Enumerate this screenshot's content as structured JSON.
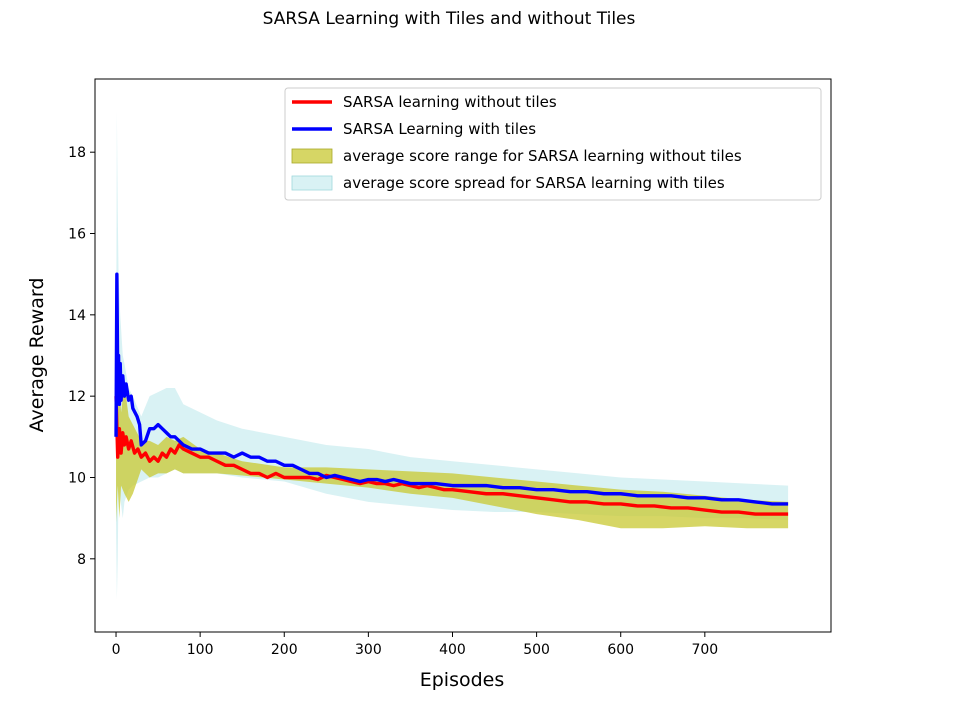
{
  "chart_data": {
    "type": "line",
    "title": "SARSA Learning with Tiles and without Tiles",
    "xlabel": "Episodes",
    "ylabel": "Average Reward",
    "xlim": [
      -25,
      850
    ],
    "ylim": [
      6.2,
      19.8
    ],
    "xticks": [
      0,
      100,
      200,
      300,
      400,
      500,
      600,
      700
    ],
    "yticks": [
      8,
      10,
      12,
      14,
      16,
      18
    ],
    "grid": false,
    "legend_position": "top-right",
    "colors": {
      "without_tiles_line": "#ff0000",
      "with_tiles_line": "#0000ff",
      "without_tiles_band": "#c8c832",
      "with_tiles_band": "#b4e6ea"
    },
    "series": [
      {
        "name": "SARSA learning without tiles",
        "kind": "line",
        "x": [
          0,
          2,
          4,
          6,
          8,
          10,
          12,
          15,
          18,
          22,
          26,
          30,
          35,
          40,
          45,
          50,
          55,
          60,
          65,
          70,
          75,
          80,
          90,
          100,
          110,
          120,
          130,
          140,
          150,
          160,
          170,
          180,
          190,
          200,
          210,
          220,
          230,
          240,
          250,
          260,
          270,
          280,
          290,
          300,
          310,
          320,
          330,
          340,
          350,
          360,
          370,
          380,
          390,
          400,
          420,
          440,
          460,
          480,
          500,
          520,
          540,
          560,
          580,
          600,
          620,
          640,
          660,
          680,
          700,
          720,
          740,
          760,
          780,
          799
        ],
        "y": [
          12.0,
          10.5,
          11.2,
          10.6,
          11.1,
          10.8,
          11.0,
          10.7,
          10.9,
          10.6,
          10.7,
          10.5,
          10.6,
          10.4,
          10.5,
          10.4,
          10.6,
          10.5,
          10.7,
          10.6,
          10.8,
          10.7,
          10.6,
          10.5,
          10.5,
          10.4,
          10.3,
          10.3,
          10.2,
          10.1,
          10.1,
          10.0,
          10.1,
          10.0,
          10.0,
          10.0,
          10.0,
          9.95,
          10.05,
          10.0,
          9.95,
          9.9,
          9.85,
          9.9,
          9.85,
          9.85,
          9.8,
          9.85,
          9.8,
          9.75,
          9.8,
          9.75,
          9.7,
          9.7,
          9.65,
          9.6,
          9.6,
          9.55,
          9.5,
          9.45,
          9.4,
          9.4,
          9.35,
          9.35,
          9.3,
          9.3,
          9.25,
          9.25,
          9.2,
          9.15,
          9.15,
          9.1,
          9.1,
          9.1
        ]
      },
      {
        "name": "SARSA Learning with tiles",
        "kind": "line",
        "x": [
          0,
          1,
          2,
          3,
          4,
          5,
          6,
          8,
          10,
          12,
          15,
          18,
          20,
          25,
          28,
          30,
          35,
          40,
          45,
          50,
          55,
          60,
          65,
          70,
          80,
          90,
          100,
          110,
          120,
          130,
          140,
          150,
          160,
          170,
          180,
          190,
          200,
          210,
          220,
          230,
          240,
          250,
          260,
          270,
          280,
          290,
          300,
          310,
          320,
          330,
          340,
          350,
          360,
          380,
          400,
          420,
          440,
          460,
          480,
          500,
          520,
          540,
          560,
          580,
          600,
          620,
          640,
          660,
          680,
          700,
          720,
          740,
          760,
          780,
          799
        ],
        "y": [
          11.0,
          15.0,
          12.5,
          13.0,
          11.8,
          12.8,
          11.9,
          12.5,
          12.0,
          12.3,
          11.9,
          12.0,
          11.7,
          11.5,
          11.3,
          10.8,
          10.9,
          11.2,
          11.2,
          11.3,
          11.2,
          11.1,
          11.0,
          11.0,
          10.8,
          10.7,
          10.7,
          10.6,
          10.6,
          10.6,
          10.5,
          10.6,
          10.5,
          10.5,
          10.4,
          10.4,
          10.3,
          10.3,
          10.2,
          10.1,
          10.1,
          10.0,
          10.05,
          10.0,
          9.95,
          9.9,
          9.95,
          9.95,
          9.9,
          9.95,
          9.9,
          9.85,
          9.85,
          9.85,
          9.8,
          9.8,
          9.8,
          9.75,
          9.75,
          9.7,
          9.7,
          9.65,
          9.65,
          9.6,
          9.6,
          9.55,
          9.55,
          9.55,
          9.5,
          9.5,
          9.45,
          9.45,
          9.4,
          9.35,
          9.35
        ]
      },
      {
        "name": "average score range for SARSA learning without tiles",
        "kind": "band",
        "x": [
          0,
          2,
          4,
          6,
          10,
          15,
          20,
          30,
          40,
          50,
          60,
          70,
          80,
          100,
          120,
          150,
          200,
          250,
          300,
          350,
          400,
          450,
          500,
          550,
          600,
          650,
          700,
          750,
          799
        ],
        "upper": [
          12.0,
          12.9,
          12.3,
          11.6,
          12.3,
          11.5,
          11.3,
          10.9,
          10.9,
          10.8,
          11.0,
          10.9,
          11.0,
          10.7,
          10.6,
          10.4,
          10.25,
          10.25,
          10.2,
          10.15,
          10.1,
          10.0,
          9.9,
          9.8,
          9.7,
          9.65,
          9.55,
          9.45,
          9.4
        ],
        "lower": [
          8.9,
          9.8,
          9.0,
          9.8,
          9.6,
          9.4,
          9.6,
          10.2,
          10.0,
          10.1,
          10.1,
          10.2,
          10.1,
          10.1,
          10.1,
          10.05,
          9.95,
          9.85,
          9.75,
          9.6,
          9.5,
          9.3,
          9.1,
          8.95,
          8.75,
          8.75,
          8.8,
          8.75,
          8.75
        ]
      },
      {
        "name": "average score spread for SARSA learning with tiles",
        "kind": "band",
        "x": [
          0,
          1,
          2,
          3,
          5,
          8,
          10,
          15,
          20,
          30,
          40,
          50,
          60,
          70,
          80,
          100,
          120,
          150,
          200,
          250,
          300,
          350,
          400,
          450,
          500,
          550,
          600,
          650,
          700,
          750,
          799
        ],
        "upper": [
          12.0,
          19.0,
          16.6,
          15.0,
          14.0,
          13.0,
          12.8,
          12.2,
          12.0,
          11.5,
          12.0,
          12.1,
          12.2,
          12.2,
          11.8,
          11.6,
          11.4,
          11.2,
          11.0,
          10.8,
          10.7,
          10.5,
          10.4,
          10.3,
          10.2,
          10.1,
          10.0,
          9.95,
          9.9,
          9.85,
          9.8
        ],
        "lower": [
          8.9,
          7.0,
          8.0,
          9.8,
          9.5,
          9.0,
          9.4,
          9.7,
          9.8,
          9.9,
          10.0,
          10.0,
          10.1,
          10.2,
          10.1,
          10.1,
          10.1,
          10.0,
          9.9,
          9.6,
          9.4,
          9.3,
          9.2,
          9.15,
          9.15,
          9.1,
          9.05,
          9.05,
          9.0,
          9.0,
          8.95
        ]
      }
    ]
  }
}
